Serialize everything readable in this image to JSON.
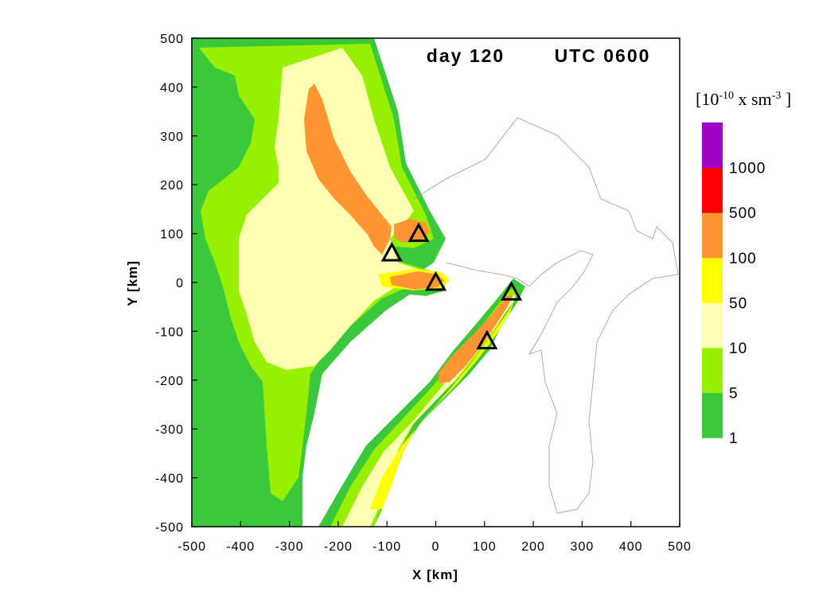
{
  "chart_data": {
    "type": "heatmap",
    "title_day": "day 120",
    "title_time": "UTC 0600",
    "xlabel": "X [km]",
    "ylabel": "Y [km]",
    "xlim": [
      -500,
      500
    ],
    "ylim": [
      -500,
      500
    ],
    "x_ticks": [
      "-500",
      "-400",
      "-300",
      "-200",
      "-100",
      "0",
      "100",
      "200",
      "300",
      "400",
      "500"
    ],
    "y_ticks": [
      "500",
      "400",
      "300",
      "200",
      "100",
      "0",
      "-100",
      "-200",
      "-300",
      "-400",
      "-500"
    ],
    "colorbar": {
      "title_base": "[10",
      "title_exp1": "-10",
      "title_mid": " x sm",
      "title_exp2": "-3",
      "title_end": " ]",
      "levels": [
        "1",
        "5",
        "10",
        "50",
        "100",
        "500",
        "1000"
      ],
      "colors": [
        "#3cc83c",
        "#96f000",
        "#ffffb4",
        "#ffff00",
        "#ff9632",
        "#ff0000",
        "#a000c8"
      ]
    },
    "sources": [
      {
        "x": -35,
        "y": 100
      },
      {
        "x": -90,
        "y": 60
      },
      {
        "x": 0,
        "y": 0
      },
      {
        "x": 155,
        "y": -20
      },
      {
        "x": 105,
        "y": -120
      }
    ]
  }
}
